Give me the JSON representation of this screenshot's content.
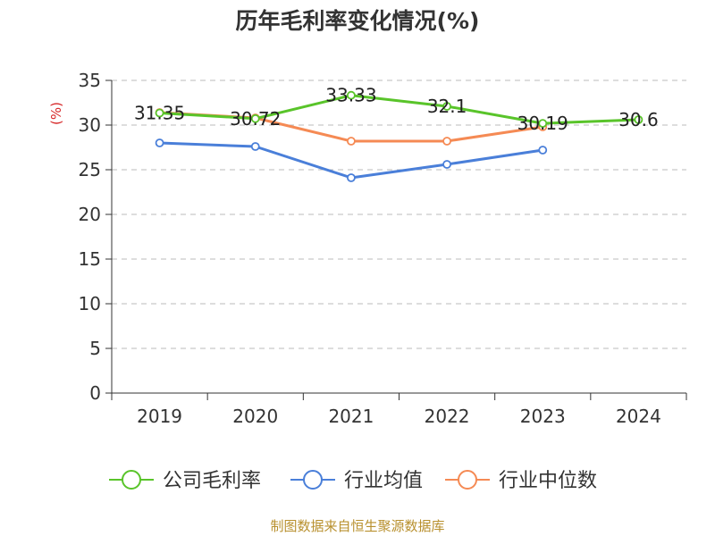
{
  "source_note": "制图数据来自恒生聚源数据库",
  "colors": {
    "grid": "#bbbbbb",
    "axis": "#333333"
  },
  "chart_data": {
    "type": "line",
    "title": "历年毛利率变化情况(%)",
    "ylabel": "(%)",
    "xlabel": "",
    "categories": [
      "2019",
      "2020",
      "2021",
      "2022",
      "2023",
      "2024"
    ],
    "ylim": [
      0,
      35
    ],
    "yticks": [
      0,
      5,
      10,
      15,
      20,
      25,
      30,
      35
    ],
    "grid": true,
    "legend_position": "bottom",
    "series": [
      {
        "name": "公司毛利率",
        "color": "#59c42a",
        "values": [
          31.35,
          30.72,
          33.33,
          32.1,
          30.19,
          30.6
        ],
        "labels": [
          "31.35",
          "30.72",
          "33.33",
          "32.1",
          "30.19",
          "30.6"
        ]
      },
      {
        "name": "行业均值",
        "color": "#4a7fd9",
        "values": [
          28.0,
          27.6,
          24.1,
          25.6,
          27.2,
          null
        ]
      },
      {
        "name": "行业中位数",
        "color": "#f58a54",
        "values": [
          31.4,
          30.8,
          28.2,
          28.2,
          29.8,
          null
        ]
      }
    ]
  }
}
